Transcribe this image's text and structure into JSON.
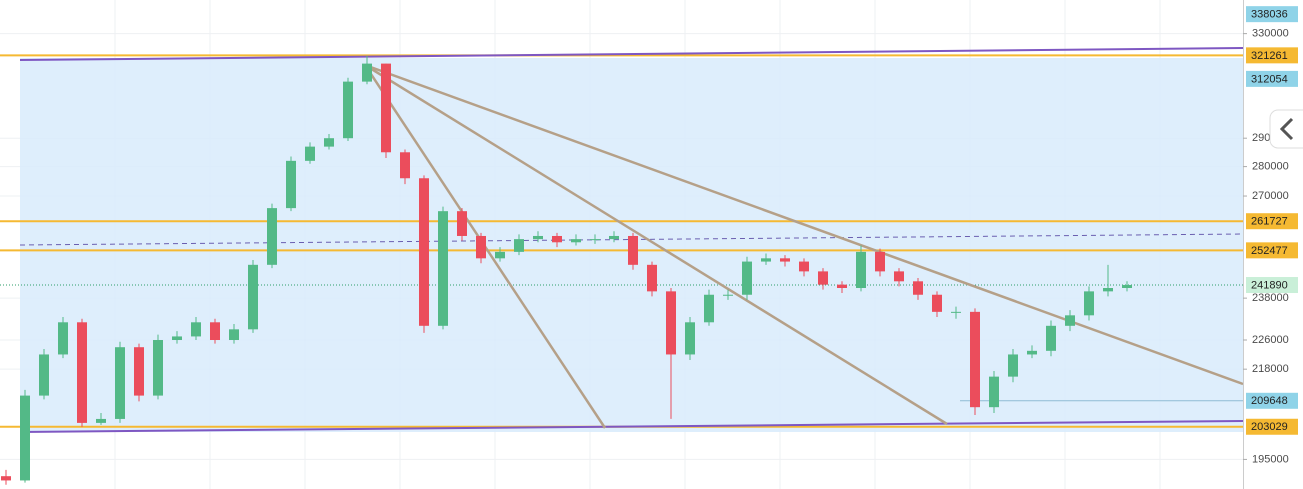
{
  "chart_data": {
    "type": "candlestick",
    "log_scale": true,
    "grid": true,
    "up_color": "#53b987",
    "down_color": "#eb4d5c",
    "ylim": [
      188000,
      344000
    ],
    "yticks": [
      330000,
      290000,
      280000,
      270000,
      238000,
      226000,
      218000,
      195000
    ],
    "open": [
      191000,
      190000,
      211000,
      222000,
      231000,
      204000,
      205000,
      224000,
      211000,
      226000,
      227000,
      231000,
      226000,
      229000,
      248000,
      266000,
      282000,
      287000,
      290000,
      311000,
      318000,
      285000,
      276000,
      230000,
      265000,
      257000,
      250000,
      252000,
      256000,
      257000,
      255000,
      256000,
      256000,
      257000,
      248000,
      240000,
      222000,
      231000,
      239000,
      239000,
      249000,
      250000,
      249000,
      246000,
      242000,
      241000,
      252000,
      246000,
      243000,
      239000,
      234000,
      234000,
      208000,
      216000,
      222000,
      223000,
      230000,
      233000,
      240000,
      241000
    ],
    "high": [
      192500,
      212500,
      223500,
      232500,
      232000,
      206500,
      225500,
      225000,
      227500,
      228500,
      232500,
      232000,
      230500,
      249500,
      267500,
      283500,
      288500,
      291500,
      312500,
      321000,
      318000,
      286000,
      277000,
      266500,
      266000,
      258000,
      253500,
      257500,
      258500,
      258000,
      257500,
      257500,
      258500,
      258000,
      249000,
      241000,
      232500,
      240500,
      240500,
      250500,
      251500,
      251000,
      250000,
      247000,
      243000,
      254000,
      253000,
      247000,
      244000,
      240000,
      235500,
      235000,
      217500,
      223500,
      224500,
      231500,
      234500,
      241500,
      248000,
      243000
    ],
    "low": [
      189000,
      189500,
      210000,
      221000,
      203000,
      203500,
      204000,
      209500,
      210000,
      225000,
      226000,
      225000,
      225000,
      228000,
      247000,
      265000,
      281000,
      286000,
      289000,
      310000,
      283000,
      274000,
      228000,
      229000,
      255500,
      248500,
      249000,
      251000,
      255000,
      253500,
      254000,
      254500,
      255000,
      246500,
      238500,
      205000,
      220500,
      230000,
      237500,
      237500,
      248000,
      247500,
      244500,
      240500,
      239500,
      240000,
      244500,
      241500,
      237500,
      232500,
      232000,
      206000,
      206500,
      214500,
      221000,
      221500,
      228500,
      231500,
      238500,
      240000
    ],
    "close": [
      190000,
      211000,
      222000,
      231000,
      204000,
      205000,
      224000,
      211000,
      226000,
      227000,
      231000,
      226000,
      229000,
      248000,
      266000,
      282000,
      287000,
      290000,
      311000,
      318000,
      285000,
      276000,
      230000,
      265000,
      257000,
      250000,
      252000,
      256000,
      257000,
      255000,
      256000,
      256000,
      257000,
      248000,
      240000,
      222000,
      231000,
      239000,
      239000,
      249000,
      250000,
      249000,
      246000,
      242000,
      241000,
      252000,
      246000,
      243000,
      239000,
      234000,
      234000,
      208000,
      216000,
      222000,
      223000,
      230000,
      233000,
      240000,
      241000,
      241890
    ],
    "price_lines": [
      {
        "value": 338036,
        "color": "#8fd3e8",
        "line": "none"
      },
      {
        "value": 321261,
        "color": "#f5b932",
        "line": "solid"
      },
      {
        "value": 312054,
        "color": "#8fd3e8",
        "line": "none"
      },
      {
        "value": 261727,
        "color": "#f5b932",
        "line": "solid"
      },
      {
        "value": 252477,
        "color": "#f5b932",
        "line": "solid"
      },
      {
        "value": 241890,
        "color": "#c9efd8",
        "line": "dotted"
      },
      {
        "value": 209648,
        "color": "#8fd3e8",
        "line": "thin"
      },
      {
        "value": 203029,
        "color": "#f5b932",
        "line": "solid"
      }
    ]
  }
}
